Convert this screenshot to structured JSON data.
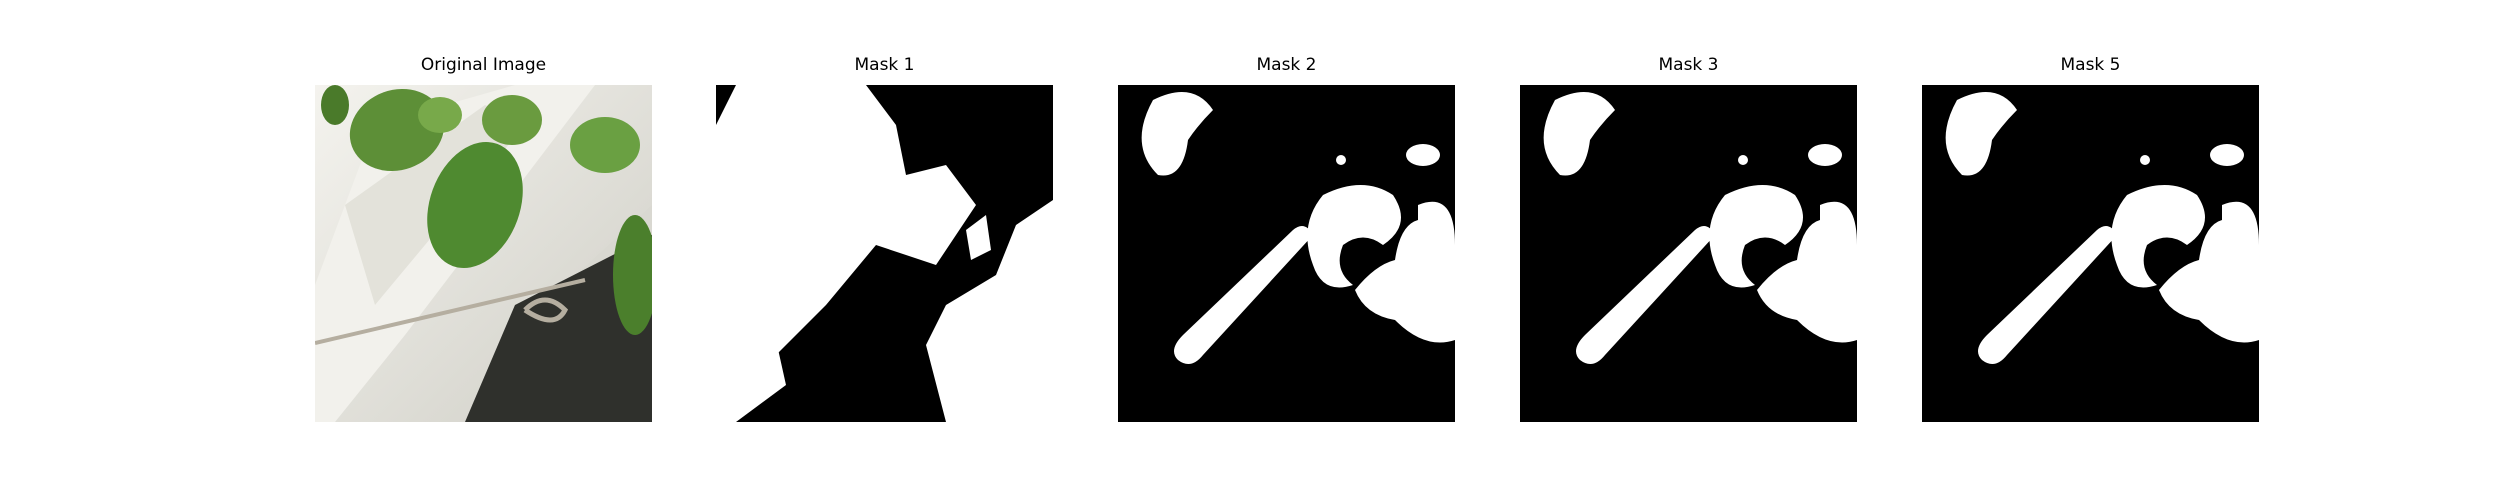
{
  "panels": [
    {
      "title": "Original Image"
    },
    {
      "title": "Mask 1"
    },
    {
      "title": "Mask 2"
    },
    {
      "title": "Mask 3"
    },
    {
      "title": "Mask 5"
    }
  ],
  "colors": {
    "background": "#ffffff",
    "mask_fg": "#ffffff",
    "mask_bg": "#000000",
    "leaf": "#5b8f3a",
    "container": "#e9e8e1",
    "soil": "#3a3a36"
  }
}
